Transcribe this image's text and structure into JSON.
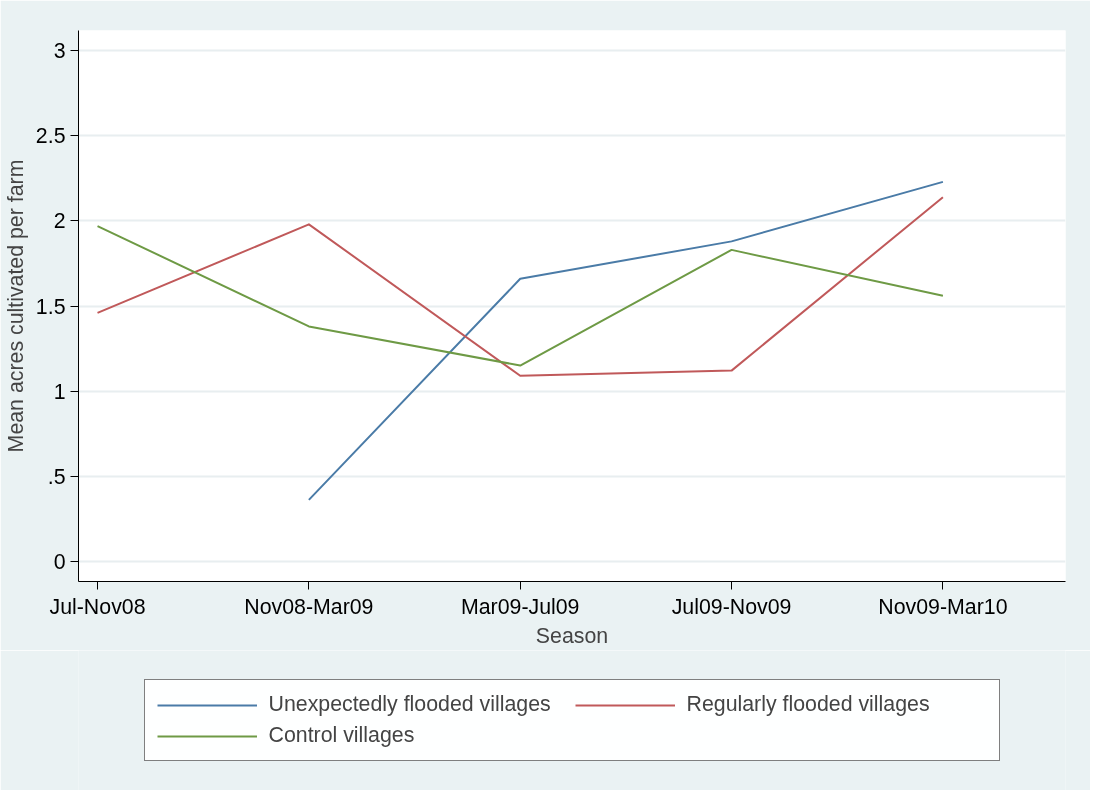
{
  "chart_data": {
    "type": "line",
    "xlabel": "Season",
    "ylabel": "Mean acres cultivated per farm",
    "categories": [
      "Jul-Nov08",
      "Nov08-Mar09",
      "Mar09-Jul09",
      "Jul09-Nov09",
      "Nov09-Mar10"
    ],
    "series": [
      {
        "name": "Unexpectedly flooded villages",
        "color": "#4a7ba7",
        "values": [
          null,
          0.36,
          1.66,
          1.88,
          2.23
        ]
      },
      {
        "name": "Regularly flooded villages",
        "color": "#c0595a",
        "values": [
          1.46,
          1.98,
          1.09,
          1.12,
          2.14
        ]
      },
      {
        "name": "Control villages",
        "color": "#6e9a45",
        "values": [
          1.97,
          1.38,
          1.15,
          1.83,
          1.56
        ]
      }
    ],
    "ylim": [
      -0.12,
      3.12
    ],
    "yticks": [
      0,
      {
        "value": 0.5,
        "label": ".5"
      },
      1,
      1.5,
      2,
      2.5,
      3
    ],
    "grid": "y",
    "legend": "bottom",
    "marker": "none",
    "line_style": "solid"
  }
}
